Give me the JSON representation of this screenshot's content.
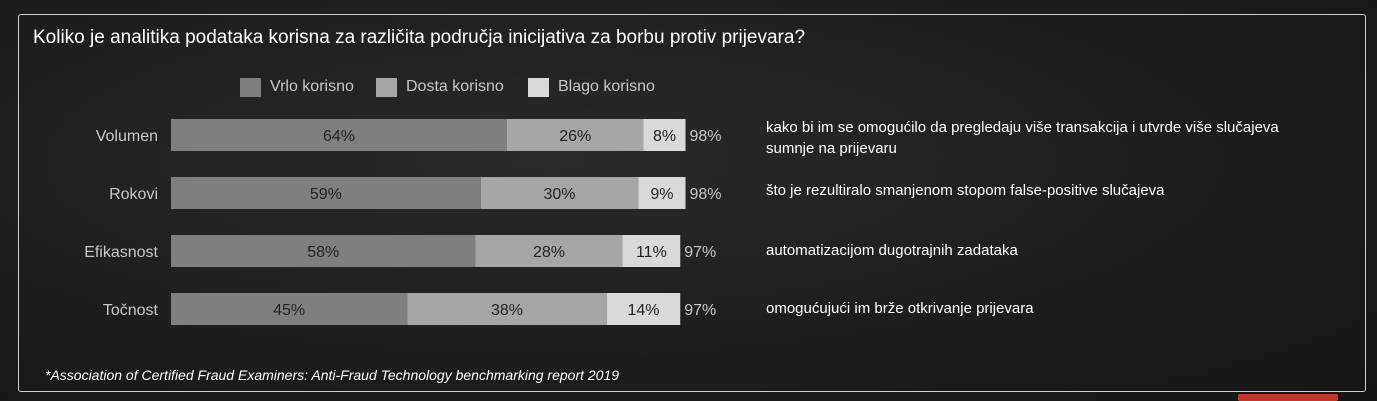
{
  "title": "Koliko je analitika podataka korisna za različita područja inicijativa za borbu protiv prijevara?",
  "footnote": "*Association of Certified Fraud Examiners: Anti-Fraud Technology benchmarking report 2019",
  "colors": {
    "vrlo": "#7f7f7f",
    "dosta": "#a6a6a6",
    "blago": "#d9d9d9",
    "label_text": "#c8c8c8",
    "note_text": "#ffffff",
    "logo": "#c0392b"
  },
  "chart_data": {
    "type": "bar",
    "orientation": "horizontal",
    "stacked": true,
    "categories": [
      "Volumen",
      "Rokovi",
      "Efikasnost",
      "Točnost"
    ],
    "series": [
      {
        "name": "Vrlo korisno",
        "values": [
          64,
          59,
          58,
          45
        ],
        "labels": [
          "64%",
          "59%",
          "58%",
          "45%"
        ]
      },
      {
        "name": "Dosta korisno",
        "values": [
          26,
          30,
          28,
          38
        ],
        "labels": [
          "26%",
          "30%",
          "28%",
          "38%"
        ]
      },
      {
        "name": "Blago korisno",
        "values": [
          8,
          9,
          11,
          14
        ],
        "labels": [
          "8%",
          "9%",
          "11%",
          "14%"
        ]
      }
    ],
    "totals": [
      "98%",
      "98%",
      "97%",
      "97%"
    ],
    "notes": [
      "kako bi im se omogućilo da pregledaju više transakcija i utvrde više slučajeva sumnje na prijevaru",
      "što je rezultiralo smanjenom stopom false-positive slučajeva",
      "automatizacijom dugotrajnih zadataka",
      "omogućujući im brže otkrivanje prijevara"
    ],
    "legend_position": "top",
    "grid": false
  }
}
